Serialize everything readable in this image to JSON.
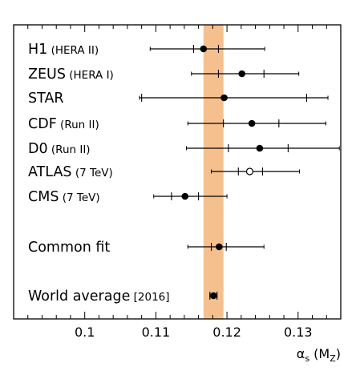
{
  "chart_data": {
    "type": "scatter",
    "subtype": "horizontal-errorbar-summary",
    "xlabel": {
      "symbol": "α",
      "sub1": "s",
      "paren_open": " (M",
      "sub2": "Z",
      "paren_close": ")"
    },
    "xlim": [
      0.09,
      0.136
    ],
    "xticks": [
      {
        "value": 0.1,
        "label": "0.1"
      },
      {
        "value": 0.11,
        "label": "0.11"
      },
      {
        "value": 0.12,
        "label": "0.12"
      },
      {
        "value": 0.13,
        "label": "0.13"
      }
    ],
    "band": {
      "low": 0.1167,
      "high": 0.1195,
      "color": "#f5c08e"
    },
    "measurements": [
      {
        "name": "H1",
        "note": "(HERA II)",
        "value": 0.1167,
        "inner_err": [
          0.1153,
          0.1188
        ],
        "outer_err": [
          0.1092,
          0.1253
        ],
        "marker": "filled"
      },
      {
        "name": "ZEUS",
        "note": "(HERA I)",
        "value": 0.1221,
        "inner_err": [
          0.1188,
          0.1252
        ],
        "outer_err": [
          0.115,
          0.1301
        ],
        "marker": "filled"
      },
      {
        "name": "STAR",
        "note": "",
        "value": 0.1196,
        "inner_err": [
          0.108,
          0.1312
        ],
        "outer_err": [
          0.1077,
          0.1342
        ],
        "marker": "filled"
      },
      {
        "name": "CDF",
        "note": "(Run II)",
        "value": 0.1235,
        "inner_err": [
          0.1195,
          0.1273
        ],
        "outer_err": [
          0.1145,
          0.1339
        ],
        "marker": "filled"
      },
      {
        "name": "D0",
        "note": "(Run II)",
        "value": 0.1246,
        "inner_err": [
          0.1202,
          0.1286
        ],
        "outer_err": [
          0.1143,
          0.1358
        ],
        "marker": "filled"
      },
      {
        "name": "ATLAS",
        "note": "(7 TeV)",
        "value": 0.1232,
        "inner_err": [
          0.1216,
          0.125
        ],
        "outer_err": [
          0.1178,
          0.1302
        ],
        "marker": "open"
      },
      {
        "name": "CMS",
        "note": "(7 TeV)",
        "value": 0.1141,
        "inner_err": [
          0.1122,
          0.116
        ],
        "outer_err": [
          0.1097,
          0.12
        ],
        "marker": "filled"
      },
      {
        "name": "Common fit",
        "note": "",
        "value": 0.1189,
        "inner_err": [
          0.1178,
          0.1199
        ],
        "outer_err": [
          0.1145,
          0.1252
        ],
        "marker": "filled"
      },
      {
        "name": "World average",
        "note": "[2016]",
        "value": 0.1181,
        "inner_err": [
          0.1176,
          0.1186
        ],
        "outer_err": [
          0.1176,
          0.1186
        ],
        "marker": "filled"
      }
    ]
  }
}
